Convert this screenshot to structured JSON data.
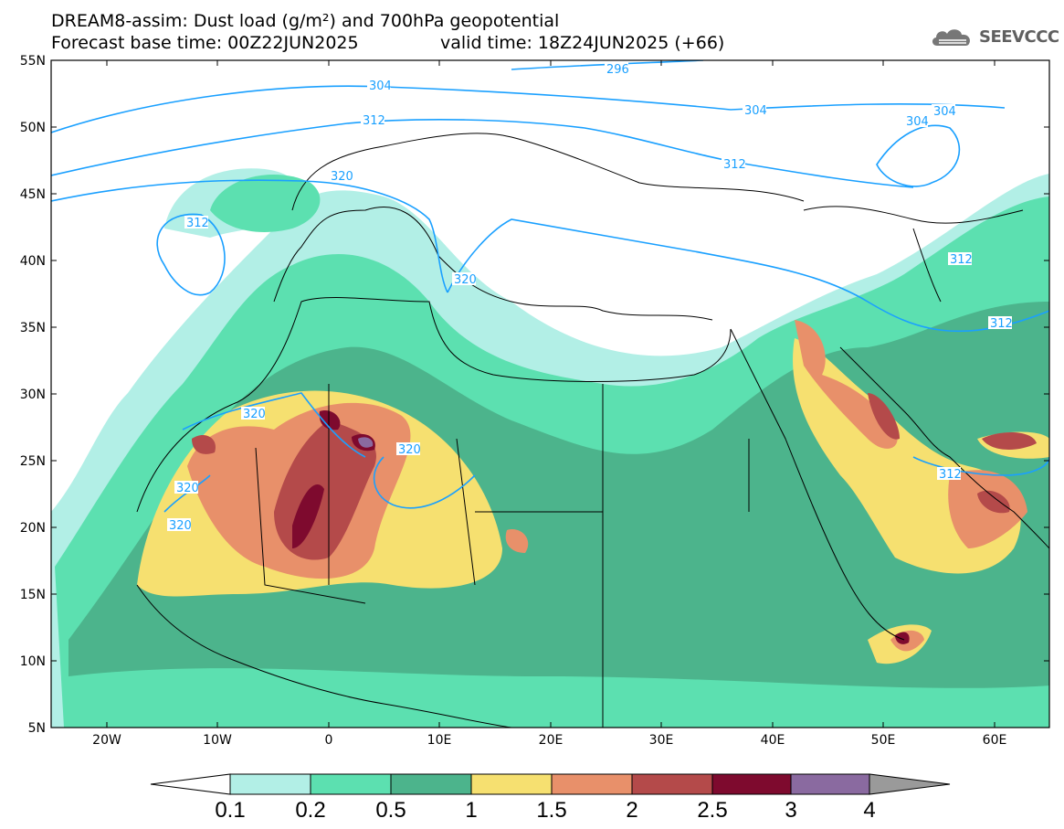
{
  "header": {
    "title_line1": "DREAM8-assim: Dust load (g/m²) and 700hPa geopotential",
    "title_line2": "Forecast base time: 00Z22JUN2025",
    "valid_time": "valid time: 18Z24JUN2025 (+66)",
    "logo_text": "SEEVCCC",
    "logo_icon": "cloud-icon"
  },
  "axes": {
    "lat_labels": [
      "55N",
      "50N",
      "45N",
      "40N",
      "35N",
      "30N",
      "25N",
      "20N",
      "15N",
      "10N",
      "5N"
    ],
    "lon_labels": [
      "20W",
      "10W",
      "0",
      "10E",
      "20E",
      "30E",
      "40E",
      "50E",
      "60E"
    ]
  },
  "contour_labels": {
    "c296": "296",
    "c304": "304",
    "c312": "312",
    "c320": "320"
  },
  "colorbar": {
    "levels": [
      "0.1",
      "0.2",
      "0.5",
      "1",
      "1.5",
      "2",
      "2.5",
      "3",
      "4"
    ],
    "colors": [
      "#b2efe6",
      "#5ce0b0",
      "#4cb48c",
      "#f6e070",
      "#e8906a",
      "#b44a4a",
      "#7e0a2e",
      "#8a6aa0",
      "#9a9a9a"
    ]
  },
  "colors": {
    "contour": "#1aa0ff",
    "land_outline": "#000000",
    "dust_01": "#b2efe6",
    "dust_02": "#5ce0b0",
    "dust_05": "#4cb48c",
    "dust_1": "#f6e070",
    "dust_15": "#e8906a",
    "dust_2": "#b44a4a",
    "dust_25": "#7e0a2e",
    "dust_3": "#8a6aa0"
  }
}
